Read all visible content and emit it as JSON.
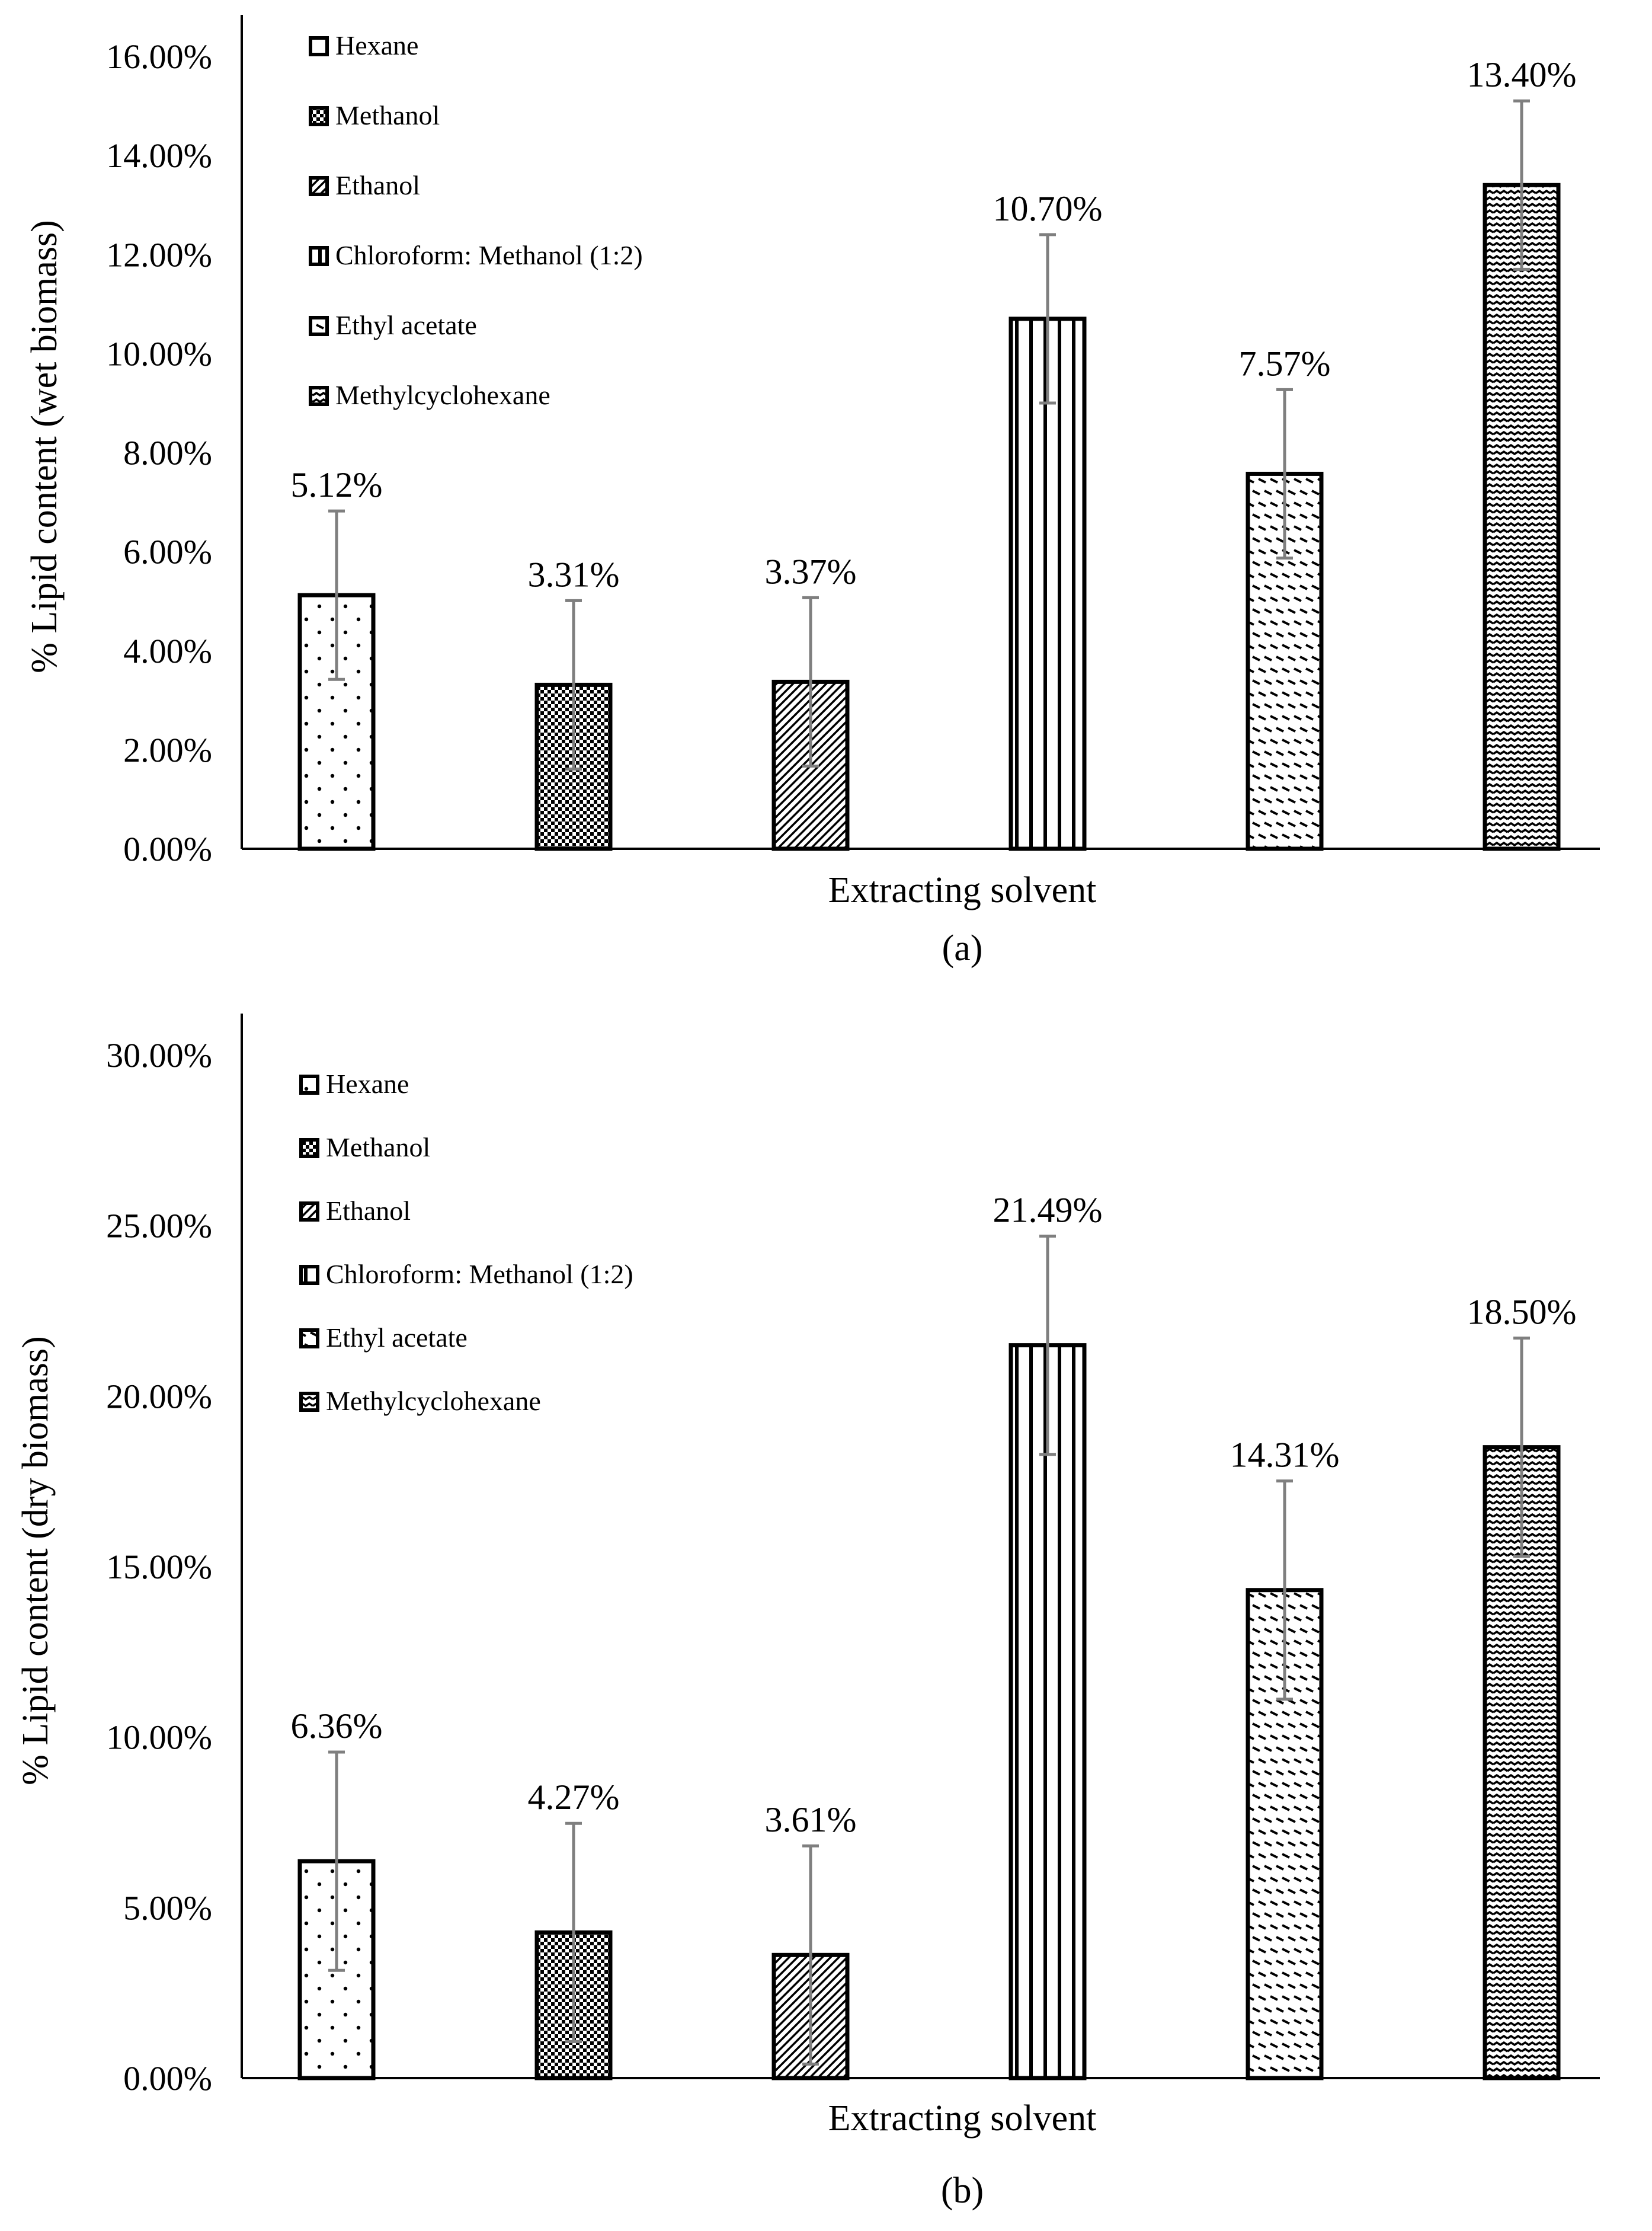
{
  "chart_data": [
    {
      "type": "bar",
      "panel_label": "(a)",
      "title": "",
      "xlabel": "Extracting solvent",
      "ylabel": "% Lipid content  (wet biomass)",
      "ylim": [
        0,
        16
      ],
      "ytick_step": 2,
      "ytick_labels": [
        "0.00%",
        "2.00%",
        "4.00%",
        "6.00%",
        "8.00%",
        "10.00%",
        "12.00%",
        "14.00%",
        "16.00%"
      ],
      "legend_position": "top-left",
      "categories": [
        "Hexane",
        "Methanol",
        "Ethanol",
        "Chloroform: Methanol (1:2)",
        "Ethyl acetate",
        "Methylcyclohexane"
      ],
      "values": [
        5.12,
        3.31,
        3.37,
        10.7,
        7.57,
        13.4
      ],
      "errors": [
        1.7,
        1.7,
        1.7,
        1.7,
        1.7,
        1.7
      ],
      "value_labels": [
        "5.12%",
        "3.31%",
        "3.37%",
        "10.70%",
        "7.57%",
        "13.40%"
      ],
      "grid": false
    },
    {
      "type": "bar",
      "panel_label": "(b)",
      "title": "",
      "xlabel": "Extracting solvent",
      "ylabel": "% Lipid content (dry biomass)",
      "ylim": [
        0,
        30
      ],
      "ytick_step": 5,
      "ytick_labels": [
        "0.00%",
        "5.00%",
        "10.00%",
        "15.00%",
        "20.00%",
        "25.00%",
        "30.00%"
      ],
      "legend_position": "top-left",
      "categories": [
        "Hexane",
        "Methanol",
        "Ethanol",
        "Chloroform: Methanol (1:2)",
        "Ethyl acetate",
        "Methylcyclohexane"
      ],
      "values": [
        6.36,
        4.27,
        3.61,
        21.49,
        14.31,
        18.5
      ],
      "errors": [
        3.2,
        3.2,
        3.2,
        3.2,
        3.2,
        3.2
      ],
      "value_labels": [
        "6.36%",
        "4.27%",
        "3.61%",
        "21.49%",
        "14.31%",
        "18.50%"
      ],
      "grid": false
    }
  ],
  "colors": {
    "axis": "#000000",
    "bar_edge": "#000000",
    "error_bar": "#7f7f7f",
    "background": "#ffffff"
  },
  "patterns": [
    "dots-sparse",
    "checker-dense",
    "diagonal-stripes",
    "vertical-stripes",
    "short-dashes",
    "zigzag"
  ]
}
